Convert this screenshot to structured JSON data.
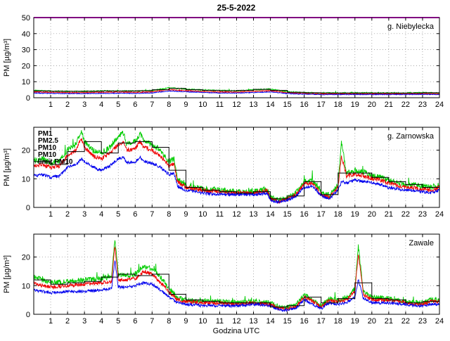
{
  "title": "25-5-2022",
  "xlabel": "Godzina UTC",
  "ylabel": "PM [µg/m³]",
  "legend": [
    {
      "label": "PM1",
      "color": "#0000ee"
    },
    {
      "label": "PM2.5",
      "color": "#ee0000"
    },
    {
      "label": "PM10",
      "color": "#00cc00"
    },
    {
      "label": "PM10",
      "color": "#000000"
    },
    {
      "label": "limit PM10",
      "color": "#ff00ff"
    }
  ],
  "chart_data": [
    {
      "type": "line",
      "station": "g. Niebylecka",
      "xlim": [
        0,
        24
      ],
      "ylim": [
        0,
        50
      ],
      "xticks": [
        1,
        2,
        3,
        4,
        5,
        6,
        7,
        8,
        9,
        10,
        11,
        12,
        13,
        14,
        15,
        16,
        17,
        18,
        19,
        20,
        21,
        22,
        23,
        24
      ],
      "yticks": [
        0,
        10,
        20,
        30,
        40,
        50
      ],
      "limit": {
        "name": "limit PM10",
        "color": "#ff00ff",
        "value": 50
      },
      "series": [
        {
          "name": "PM10",
          "color": "#00cc00",
          "x": [
            0,
            1,
            2,
            3,
            4,
            5,
            6,
            7,
            8,
            9,
            10,
            11,
            12,
            13,
            14,
            15,
            16,
            17,
            18,
            19,
            20,
            21,
            22,
            23,
            24
          ],
          "y": [
            4.5,
            4.2,
            4.0,
            4.0,
            4.2,
            4.3,
            4.2,
            4.5,
            6.2,
            5.4,
            4.8,
            4.5,
            4.3,
            5.0,
            5.4,
            3.8,
            3.2,
            3.0,
            3.0,
            3.0,
            3.0,
            3.0,
            3.0,
            3.2,
            3.0
          ]
        },
        {
          "name": "PM2.5",
          "color": "#ee0000",
          "x": [
            0,
            1,
            2,
            3,
            4,
            5,
            6,
            7,
            8,
            9,
            10,
            11,
            12,
            13,
            14,
            15,
            16,
            17,
            18,
            19,
            20,
            21,
            22,
            23,
            24
          ],
          "y": [
            3.6,
            3.4,
            3.2,
            3.2,
            3.4,
            3.5,
            3.4,
            3.7,
            5.0,
            4.4,
            3.9,
            3.6,
            3.5,
            4.0,
            4.4,
            3.1,
            2.6,
            2.4,
            2.4,
            2.4,
            2.4,
            2.4,
            2.4,
            2.6,
            2.4
          ]
        },
        {
          "name": "PM1",
          "color": "#0000ee",
          "x": [
            0,
            1,
            2,
            3,
            4,
            5,
            6,
            7,
            8,
            9,
            10,
            11,
            12,
            13,
            14,
            15,
            16,
            17,
            18,
            19,
            20,
            21,
            22,
            23,
            24
          ],
          "y": [
            2.9,
            2.7,
            2.6,
            2.6,
            2.7,
            2.8,
            2.7,
            3.0,
            4.2,
            3.7,
            3.3,
            3.0,
            2.9,
            3.3,
            3.6,
            2.6,
            2.2,
            2.0,
            2.0,
            2.0,
            2.0,
            2.0,
            2.0,
            2.1,
            2.0
          ]
        }
      ],
      "hourly_pm10_step": {
        "name": "PM10 1h",
        "color": "#000000",
        "values": [
          4.3,
          4.1,
          4.0,
          4.1,
          4.2,
          4.2,
          4.4,
          5.0,
          5.8,
          5.0,
          4.6,
          4.4,
          4.6,
          5.2,
          4.6,
          3.4,
          3.1,
          3.0,
          3.0,
          3.0,
          3.0,
          3.0,
          3.0,
          3.1
        ]
      }
    },
    {
      "type": "line",
      "station": "g. Zarnowska",
      "xlim": [
        0,
        24
      ],
      "ylim": [
        0,
        28
      ],
      "xticks": [
        1,
        2,
        3,
        4,
        5,
        6,
        7,
        8,
        9,
        10,
        11,
        12,
        13,
        14,
        15,
        16,
        17,
        18,
        19,
        20,
        21,
        22,
        23,
        24
      ],
      "yticks": [
        0,
        10,
        20
      ],
      "series": [
        {
          "name": "PM10",
          "color": "#00cc00",
          "x": [
            0,
            0.5,
            1,
            1.5,
            2,
            2.5,
            2.8,
            3,
            3.5,
            4,
            4.5,
            5,
            5.3,
            5.5,
            6,
            6.3,
            6.5,
            7,
            7.5,
            8,
            8.3,
            8.5,
            9,
            9.5,
            10,
            11,
            12,
            13,
            13.8,
            14,
            14.5,
            15,
            15.5,
            16,
            16.5,
            17,
            17.5,
            18,
            18.2,
            18.5,
            19,
            19.5,
            20,
            20.5,
            21,
            22,
            23,
            23.5,
            24
          ],
          "y": [
            16,
            17,
            15.5,
            16,
            20,
            22,
            27,
            23,
            20,
            19,
            21,
            25,
            26,
            22,
            23,
            26,
            23,
            22,
            20,
            16,
            17,
            10,
            7.5,
            7,
            6.5,
            6,
            5.5,
            5.5,
            6.5,
            3.5,
            2.5,
            3.5,
            5,
            9,
            9.5,
            5,
            4,
            8,
            23,
            12,
            13,
            12.5,
            11,
            10.5,
            9.5,
            8,
            7.5,
            7,
            8
          ]
        },
        {
          "name": "PM2.5",
          "color": "#ee0000",
          "x": [
            0,
            0.5,
            1,
            1.5,
            2,
            2.5,
            2.8,
            3,
            3.5,
            4,
            4.5,
            5,
            5.3,
            5.5,
            6,
            6.3,
            6.5,
            7,
            7.5,
            8,
            8.3,
            8.5,
            9,
            9.5,
            10,
            11,
            12,
            13,
            13.8,
            14,
            14.5,
            15,
            15.5,
            16,
            16.5,
            17,
            17.5,
            18,
            18.2,
            18.5,
            19,
            19.5,
            20,
            20.5,
            21,
            22,
            23,
            23.5,
            24
          ],
          "y": [
            14.5,
            15,
            14,
            14.5,
            18,
            20,
            24,
            21,
            18,
            17,
            19,
            22,
            23,
            20,
            20.5,
            23,
            21,
            20,
            18,
            14.5,
            15,
            9,
            7,
            6.5,
            6,
            5.5,
            5,
            5,
            6,
            3,
            2,
            3,
            4.5,
            8,
            8.5,
            4.5,
            3.5,
            7,
            18,
            11,
            11.5,
            11,
            10,
            9.5,
            8.5,
            7,
            6.5,
            6,
            7
          ]
        },
        {
          "name": "PM1",
          "color": "#0000ee",
          "x": [
            0,
            0.5,
            1,
            1.5,
            2,
            2.5,
            2.8,
            3,
            3.5,
            4,
            4.5,
            5,
            5.3,
            5.5,
            6,
            6.3,
            6.5,
            7,
            7.5,
            8,
            8.3,
            8.5,
            9,
            9.5,
            10,
            11,
            12,
            13,
            13.8,
            14,
            14.5,
            15,
            15.5,
            16,
            16.5,
            17,
            17.5,
            18,
            18.2,
            18.5,
            19,
            19.5,
            20,
            20.5,
            21,
            22,
            23,
            23.5,
            24
          ],
          "y": [
            11,
            11.5,
            10.5,
            11,
            14,
            15,
            17,
            16,
            14,
            13,
            14.5,
            17,
            17.5,
            15.5,
            16,
            17.5,
            16,
            15.5,
            14,
            11.5,
            12,
            7.5,
            6,
            5.5,
            5,
            4.5,
            4.5,
            4.5,
            5,
            2.5,
            1.8,
            2.5,
            3.8,
            7,
            7.5,
            4,
            3,
            6,
            9,
            8.5,
            9.5,
            9,
            8.5,
            8,
            7,
            6,
            5.5,
            5,
            6
          ]
        }
      ],
      "hourly_pm10_step": {
        "name": "PM10 1h",
        "color": "#000000",
        "values": [
          16,
          15,
          19.5,
          23,
          19,
          22.5,
          23,
          21,
          13,
          7,
          6,
          5.5,
          5,
          5.5,
          3,
          4,
          9,
          4.5,
          12,
          12,
          10.5,
          9,
          8,
          7
        ]
      }
    },
    {
      "type": "line",
      "station": "Zawale",
      "xlim": [
        0,
        24
      ],
      "ylim": [
        0,
        28
      ],
      "xticks": [
        1,
        2,
        3,
        4,
        5,
        6,
        7,
        8,
        9,
        10,
        11,
        12,
        13,
        14,
        15,
        16,
        17,
        18,
        19,
        20,
        21,
        22,
        23,
        24
      ],
      "yticks": [
        0,
        10,
        20
      ],
      "series": [
        {
          "name": "PM10",
          "color": "#00cc00",
          "x": [
            0,
            0.5,
            1,
            2,
            3,
            4,
            4.6,
            4.8,
            5,
            5.5,
            6,
            6.5,
            7,
            7.5,
            8,
            8.5,
            9,
            10,
            11,
            12,
            13,
            14,
            14.5,
            15,
            15.5,
            16,
            16.5,
            17,
            17.5,
            18,
            18.5,
            19,
            19.2,
            19.5,
            20,
            21,
            22,
            22.5,
            23,
            23.5,
            24
          ],
          "y": [
            13,
            12,
            11,
            11.5,
            12,
            12.5,
            13,
            26,
            14,
            13.5,
            14,
            17,
            16,
            13,
            9,
            6,
            5,
            4.5,
            4.5,
            4,
            4.5,
            4,
            2.5,
            2.5,
            3,
            7,
            5,
            3,
            5.5,
            5,
            6,
            9,
            24,
            8,
            6,
            5.5,
            4.5,
            4,
            4,
            5,
            5
          ]
        },
        {
          "name": "PM2.5",
          "color": "#ee0000",
          "x": [
            0,
            0.5,
            1,
            2,
            3,
            4,
            4.6,
            4.8,
            5,
            5.5,
            6,
            6.5,
            7,
            7.5,
            8,
            8.5,
            9,
            10,
            11,
            12,
            13,
            14,
            14.5,
            15,
            15.5,
            16,
            16.5,
            17,
            17.5,
            18,
            18.5,
            19,
            19.2,
            19.5,
            20,
            21,
            22,
            22.5,
            23,
            23.5,
            24
          ],
          "y": [
            11,
            10,
            9.5,
            10,
            10.5,
            11,
            11.5,
            24,
            12,
            12,
            12.5,
            15,
            14,
            11,
            8,
            5,
            4.5,
            4,
            4,
            3.5,
            4,
            3.5,
            2,
            2,
            2.5,
            6,
            4.5,
            2.5,
            5,
            4.5,
            5,
            8,
            21,
            7,
            5,
            5,
            4,
            3.5,
            3.5,
            4.5,
            4.5
          ]
        },
        {
          "name": "PM1",
          "color": "#0000ee",
          "x": [
            0,
            0.5,
            1,
            2,
            3,
            4,
            4.6,
            4.8,
            5,
            5.5,
            6,
            6.5,
            7,
            7.5,
            8,
            8.5,
            9,
            10,
            11,
            12,
            13,
            14,
            14.5,
            15,
            15.5,
            16,
            16.5,
            17,
            17.5,
            18,
            18.5,
            19,
            19.2,
            19.5,
            20,
            21,
            22,
            22.5,
            23,
            23.5,
            24
          ],
          "y": [
            8.5,
            8,
            7.5,
            8,
            8,
            8.5,
            9,
            19,
            9.5,
            9.5,
            10,
            11,
            10.5,
            8.5,
            6,
            4,
            3.5,
            3,
            3,
            3,
            3.5,
            3,
            1.5,
            1.5,
            2,
            5,
            3.5,
            2,
            4,
            3.5,
            4,
            6,
            12,
            5.5,
            4,
            4,
            3.5,
            3,
            3,
            3.5,
            3.5
          ]
        }
      ],
      "hourly_pm10_step": {
        "name": "PM10 1h",
        "color": "#000000",
        "values": [
          12,
          10.5,
          11,
          11.5,
          13,
          14,
          13.5,
          14,
          7,
          5,
          4.5,
          4,
          4,
          4,
          2.5,
          3,
          6,
          4,
          5.5,
          11,
          5.5,
          5,
          4,
          4.5
        ]
      }
    }
  ]
}
